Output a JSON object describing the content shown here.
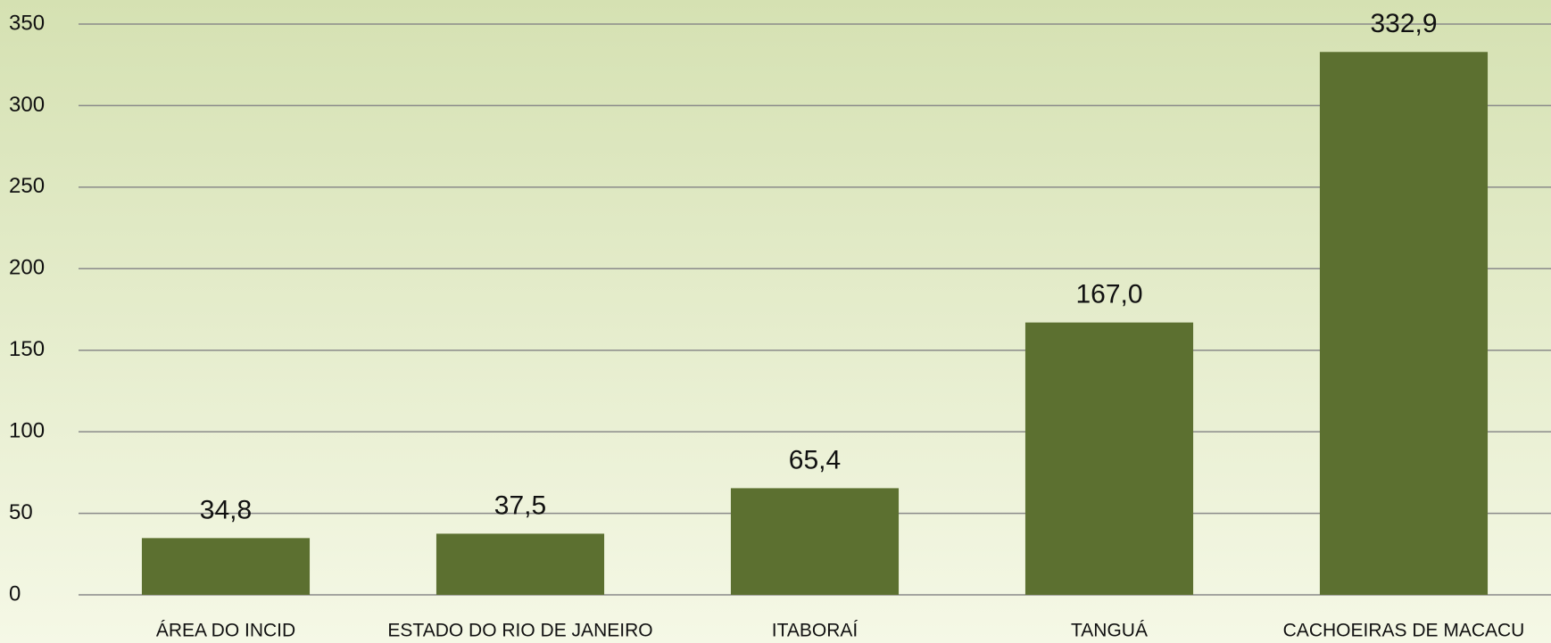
{
  "chart_data": {
    "type": "bar",
    "categories": [
      "ÁREA DO INCID",
      "ESTADO DO RIO DE JANEIRO",
      "ITABORAÍ",
      "TANGUÁ",
      "CACHOEIRAS DE MACACU"
    ],
    "values": [
      34.8,
      37.5,
      65.4,
      167.0,
      332.9
    ],
    "value_labels": [
      "34,8",
      "37,5",
      "65,4",
      "167,0",
      "332,9"
    ],
    "color": "#5c7030",
    "ylim": [
      0,
      350
    ],
    "yticks": [
      0,
      50,
      100,
      150,
      200,
      250,
      300,
      350
    ],
    "grid": true
  }
}
